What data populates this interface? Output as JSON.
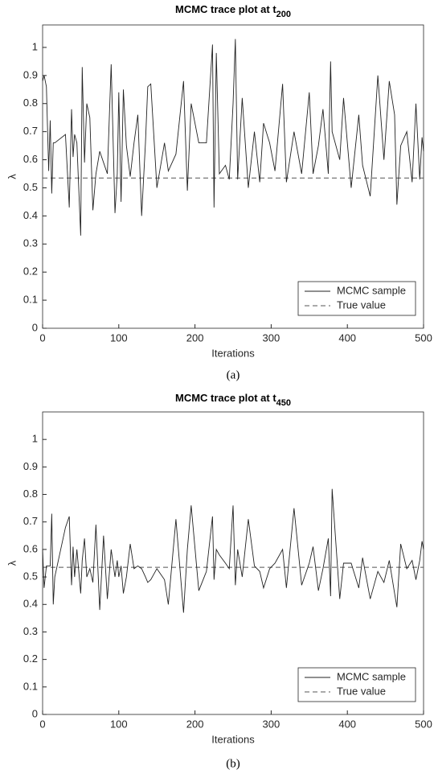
{
  "chart_data": [
    {
      "type": "line",
      "title": "MCMC trace plot at t",
      "title_subscript": "200",
      "x_label": "Iterations",
      "y_label": "λ",
      "caption": "(a)",
      "x": [
        0,
        2,
        5,
        8,
        10,
        12,
        14,
        16,
        30,
        35,
        38,
        40,
        42,
        45,
        50,
        52,
        55,
        58,
        62,
        66,
        70,
        75,
        80,
        85,
        90,
        95,
        98,
        100,
        103,
        106,
        110,
        115,
        120,
        125,
        130,
        135,
        138,
        142,
        150,
        160,
        165,
        175,
        185,
        190,
        195,
        205,
        215,
        223,
        225,
        228,
        232,
        240,
        245,
        250,
        253,
        256,
        262,
        270,
        278,
        285,
        290,
        298,
        305,
        315,
        320,
        330,
        340,
        350,
        355,
        362,
        368,
        375,
        378,
        380,
        390,
        395,
        405,
        415,
        420,
        430,
        440,
        448,
        455,
        462,
        465,
        470,
        478,
        485,
        490,
        495,
        498,
        500
      ],
      "series": [
        {
          "name": "MCMC sample",
          "color": "#222222",
          "values": [
            0.88,
            0.9,
            0.86,
            0.56,
            0.74,
            0.48,
            0.66,
            0.66,
            0.69,
            0.43,
            0.78,
            0.61,
            0.69,
            0.66,
            0.33,
            0.93,
            0.59,
            0.8,
            0.75,
            0.42,
            0.55,
            0.63,
            0.59,
            0.55,
            0.94,
            0.41,
            0.55,
            0.84,
            0.45,
            0.85,
            0.65,
            0.54,
            0.66,
            0.76,
            0.4,
            0.66,
            0.86,
            0.87,
            0.5,
            0.66,
            0.56,
            0.62,
            0.88,
            0.49,
            0.8,
            0.66,
            0.66,
            1.01,
            0.43,
            0.98,
            0.55,
            0.58,
            0.53,
            0.8,
            1.03,
            0.53,
            0.82,
            0.5,
            0.7,
            0.52,
            0.73,
            0.66,
            0.56,
            0.87,
            0.52,
            0.7,
            0.55,
            0.84,
            0.55,
            0.65,
            0.78,
            0.55,
            0.95,
            0.7,
            0.6,
            0.82,
            0.5,
            0.76,
            0.58,
            0.47,
            0.9,
            0.6,
            0.88,
            0.76,
            0.44,
            0.65,
            0.7,
            0.52,
            0.8,
            0.53,
            0.68,
            0.63
          ]
        }
      ],
      "reference_line": {
        "name": "True value",
        "value": 0.535,
        "color": "#555555"
      },
      "xlim": [
        0,
        500
      ],
      "xticks": [
        0,
        100,
        200,
        300,
        400,
        500
      ],
      "ylim": [
        0,
        1.08
      ],
      "yticks": [
        0,
        0.1,
        0.2,
        0.3,
        0.4,
        0.5,
        0.6,
        0.7,
        0.8,
        0.9,
        1
      ],
      "legend": "lower right"
    },
    {
      "type": "line",
      "title": "MCMC trace plot at t",
      "title_subscript": "450",
      "x_label": "Iterations",
      "y_label": "λ",
      "caption": "(b)",
      "x": [
        0,
        2,
        5,
        8,
        10,
        12,
        14,
        16,
        30,
        35,
        38,
        40,
        42,
        45,
        50,
        52,
        55,
        58,
        62,
        66,
        70,
        75,
        80,
        85,
        90,
        95,
        98,
        100,
        103,
        106,
        110,
        115,
        120,
        125,
        130,
        135,
        138,
        142,
        150,
        160,
        165,
        175,
        185,
        190,
        195,
        205,
        215,
        223,
        225,
        228,
        232,
        240,
        245,
        250,
        253,
        256,
        262,
        270,
        278,
        285,
        290,
        298,
        305,
        315,
        320,
        330,
        340,
        350,
        355,
        362,
        368,
        375,
        378,
        380,
        390,
        395,
        405,
        415,
        420,
        430,
        440,
        448,
        455,
        462,
        465,
        470,
        478,
        485,
        490,
        495,
        498,
        500
      ],
      "series": [
        {
          "name": "MCMC sample",
          "color": "#222222",
          "values": [
            0.6,
            0.46,
            0.54,
            0.54,
            0.54,
            0.73,
            0.4,
            0.5,
            0.68,
            0.72,
            0.47,
            0.61,
            0.5,
            0.6,
            0.44,
            0.56,
            0.64,
            0.5,
            0.53,
            0.48,
            0.69,
            0.38,
            0.65,
            0.42,
            0.6,
            0.5,
            0.56,
            0.5,
            0.54,
            0.44,
            0.5,
            0.62,
            0.53,
            0.54,
            0.53,
            0.5,
            0.48,
            0.49,
            0.53,
            0.49,
            0.4,
            0.71,
            0.37,
            0.6,
            0.76,
            0.45,
            0.52,
            0.72,
            0.49,
            0.6,
            0.58,
            0.55,
            0.53,
            0.76,
            0.47,
            0.6,
            0.5,
            0.71,
            0.54,
            0.52,
            0.46,
            0.53,
            0.55,
            0.6,
            0.46,
            0.75,
            0.47,
            0.55,
            0.61,
            0.45,
            0.53,
            0.64,
            0.43,
            0.82,
            0.42,
            0.55,
            0.55,
            0.46,
            0.57,
            0.42,
            0.52,
            0.48,
            0.56,
            0.44,
            0.39,
            0.62,
            0.53,
            0.56,
            0.49,
            0.56,
            0.63,
            0.6
          ]
        }
      ],
      "reference_line": {
        "name": "True value",
        "value": 0.535,
        "color": "#555555"
      },
      "xlim": [
        0,
        500
      ],
      "xticks": [
        0,
        100,
        200,
        300,
        400,
        500
      ],
      "ylim": [
        0,
        1.1
      ],
      "yticks": [
        0,
        0.1,
        0.2,
        0.3,
        0.4,
        0.5,
        0.6,
        0.7,
        0.8,
        0.9,
        1
      ],
      "legend": "lower right"
    }
  ]
}
